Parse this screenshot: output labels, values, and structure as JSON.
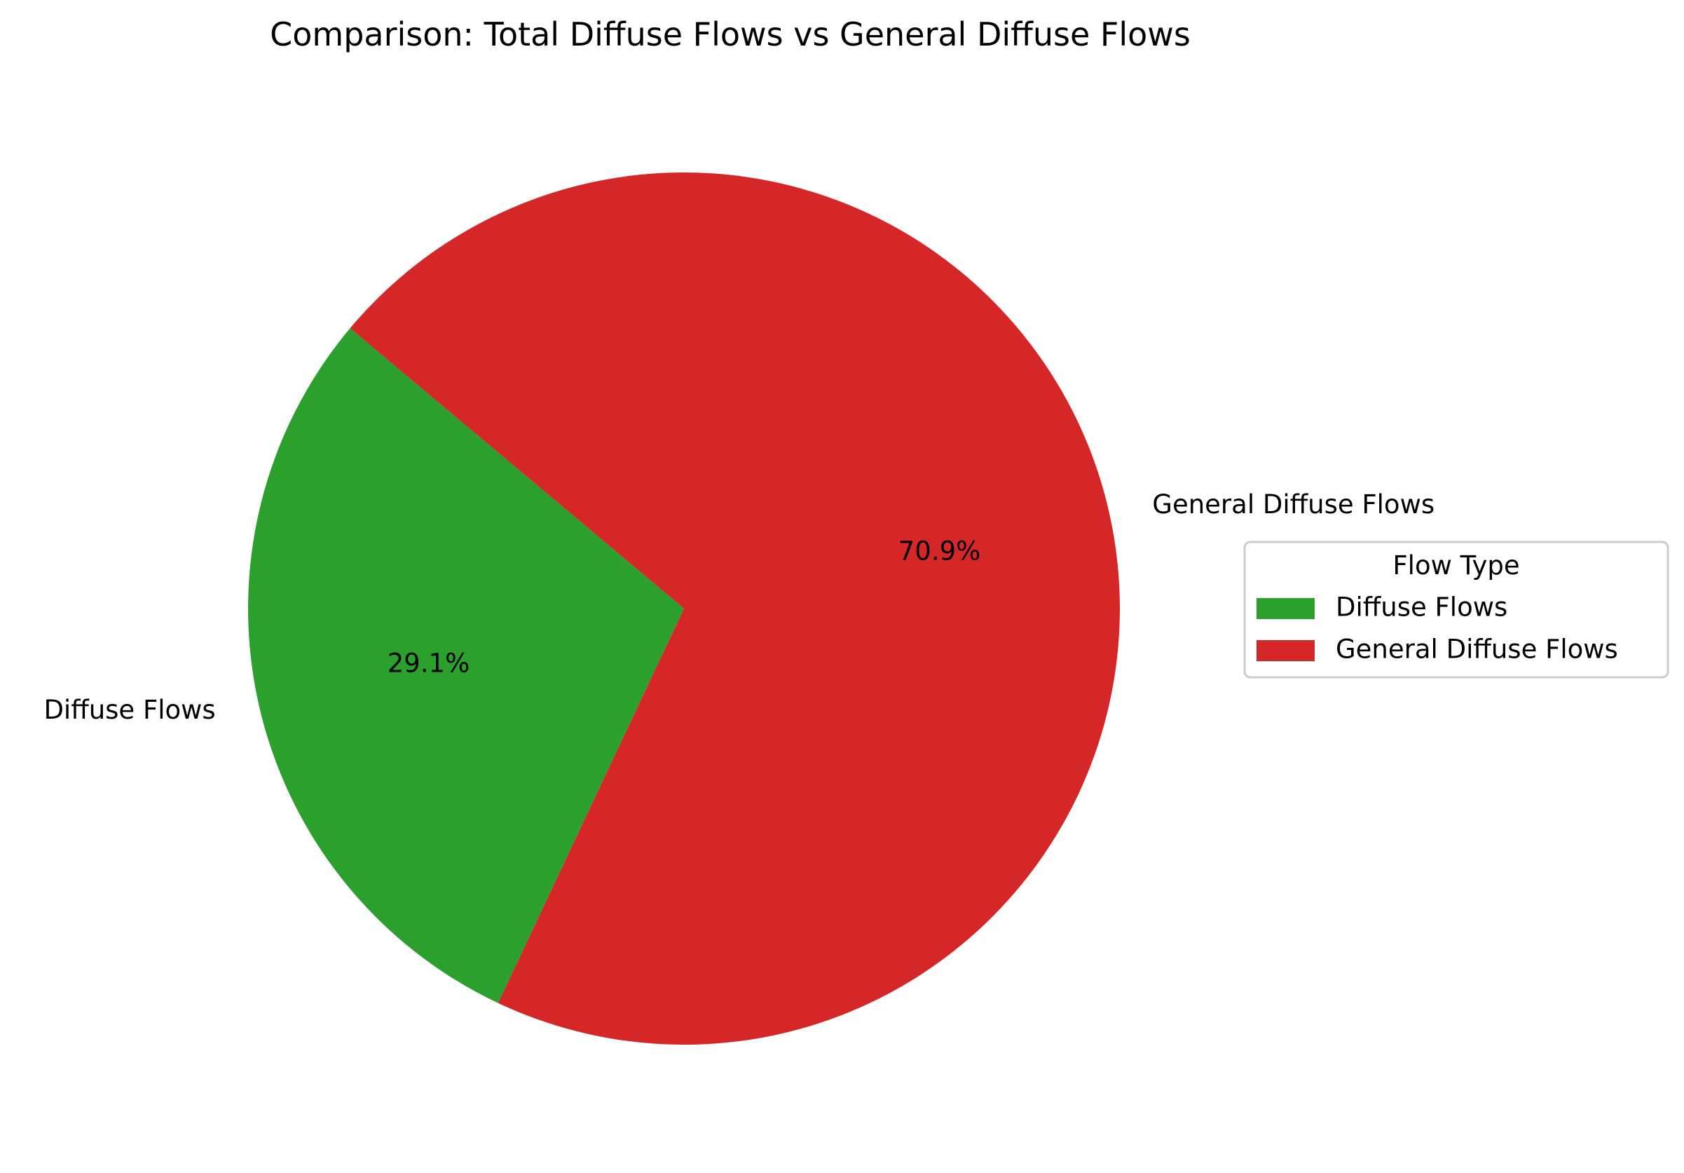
{
  "chart_data": {
    "type": "pie",
    "title": "Comparison: Total Diffuse Flows vs General Diffuse Flows",
    "categories": [
      "Diffuse Flows",
      "General Diffuse Flows"
    ],
    "values": [
      29.1,
      70.9
    ],
    "value_labels": [
      "29.1%",
      "70.9%"
    ],
    "colors": [
      "#2ca02c",
      "#d62728"
    ],
    "start_angle_deg": 140,
    "counterclock": true,
    "legend": {
      "title": "Flow Type",
      "entries": [
        "Diffuse Flows",
        "General Diffuse Flows"
      ],
      "placement": "center-right"
    }
  }
}
